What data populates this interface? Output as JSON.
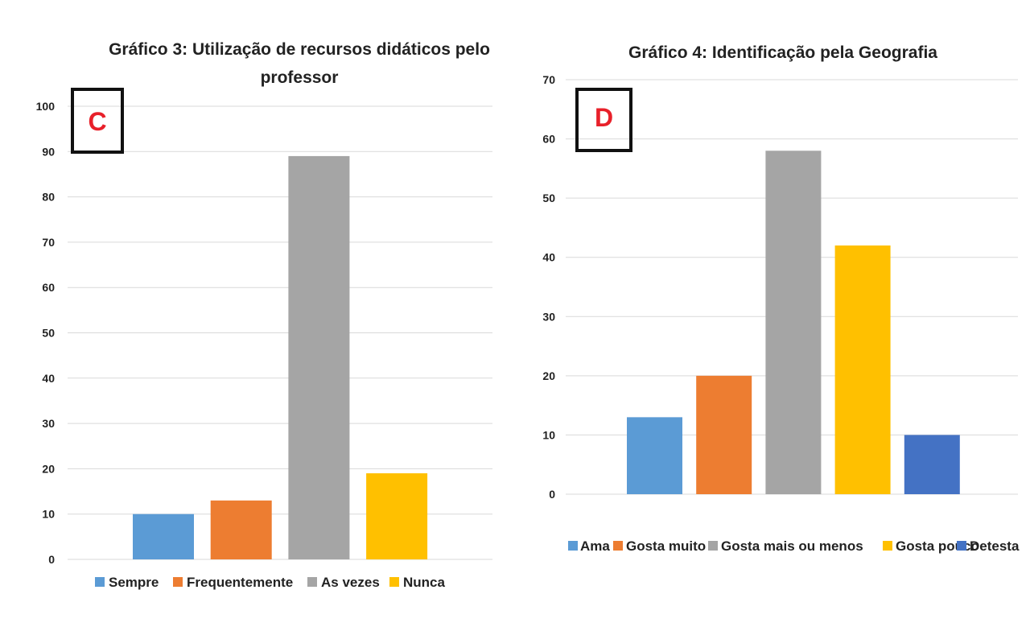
{
  "chart_data": [
    {
      "type": "bar",
      "panel_label": "C",
      "title": "Gráfico 3: Utilização de recursos didáticos pelo professor",
      "title_lines": [
        "Gráfico 3: Utilização de recursos didáticos pelo",
        "professor"
      ],
      "categories": [
        "Sempre",
        "Frequentemente",
        "As vezes",
        "Nunca"
      ],
      "values": [
        10,
        13,
        89,
        19
      ],
      "colors": [
        "#5b9bd5",
        "#ed7d31",
        "#a5a5a5",
        "#ffc000"
      ],
      "ylim": [
        0,
        100
      ],
      "yticks": [
        0,
        10,
        20,
        30,
        40,
        50,
        60,
        70,
        80,
        90,
        100
      ],
      "grid": true,
      "legend": "bottom"
    },
    {
      "type": "bar",
      "panel_label": "D",
      "title": "Gráfico 4: Identificação pela Geografia",
      "title_lines": [
        "Gráfico 4: Identificação pela Geografia"
      ],
      "categories": [
        "Ama",
        "Gosta muito",
        "Gosta mais ou menos",
        "Gosta pouco",
        "Detesta"
      ],
      "values": [
        13,
        20,
        58,
        42,
        10
      ],
      "colors": [
        "#5b9bd5",
        "#ed7d31",
        "#a5a5a5",
        "#ffc000",
        "#4472c4"
      ],
      "ylim": [
        0,
        70
      ],
      "yticks": [
        0,
        10,
        20,
        30,
        40,
        50,
        60,
        70
      ],
      "grid": true,
      "legend": "bottom"
    }
  ]
}
